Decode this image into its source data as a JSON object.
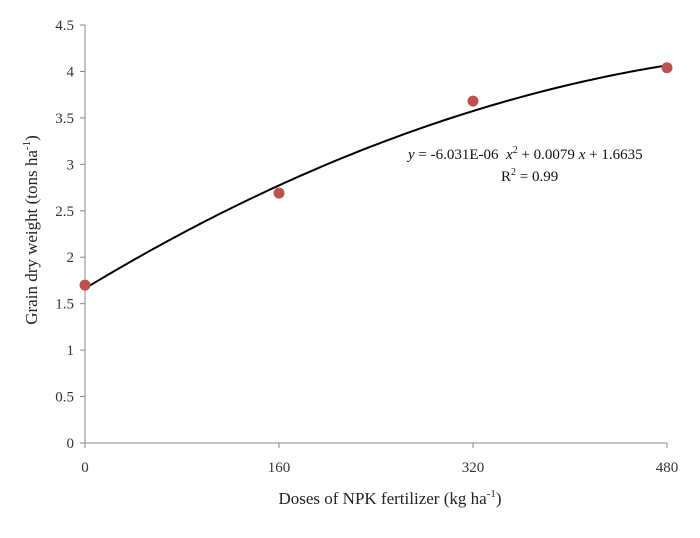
{
  "chart_data": {
    "type": "scatter",
    "title": "",
    "xlabel": "Doses of NPK fertilizer (kg ha",
    "xlabel_sup": "-1",
    "xlabel_end": ")",
    "ylabel": "Grain dry weight (tons ha",
    "ylabel_sup": "-1",
    "ylabel_end": ")",
    "xlim": [
      0,
      480
    ],
    "ylim": [
      0,
      4.5
    ],
    "x_ticks": [
      "0",
      "160",
      "320",
      "480"
    ],
    "x_tick_values": [
      0,
      160,
      320,
      480
    ],
    "y_ticks": [
      "0",
      "0.5",
      "1",
      "1.5",
      "2",
      "2.5",
      "3",
      "3.5",
      "4",
      "4.5"
    ],
    "y_tick_values": [
      0,
      0.5,
      1,
      1.5,
      2,
      2.5,
      3,
      3.5,
      4,
      4.5
    ],
    "grid": false,
    "series": [
      {
        "x": [
          0,
          160,
          320,
          480
        ],
        "y": [
          1.7,
          2.69,
          3.68,
          4.04
        ],
        "color": "#c0504d"
      }
    ],
    "trendline": {
      "type": "polynomial",
      "coefficients": {
        "a": -6.031e-06,
        "b": 0.0079,
        "c": 1.6635
      },
      "color": "#000000"
    },
    "annotation": {
      "equation": {
        "y": "y",
        "mid1": " = -6.031E-06  ",
        "x1": "x",
        "sup": "2",
        "mid2": " + 0.0079 ",
        "x2": "x",
        "end": " + 1.6635"
      },
      "r2": {
        "r": "R",
        "sup": "2",
        "rest": " = 0.99"
      }
    }
  }
}
